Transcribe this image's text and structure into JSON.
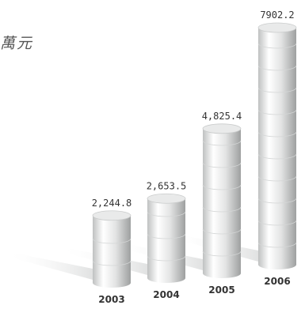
{
  "unit_label": "萬元",
  "chart_data": {
    "type": "bar",
    "title": "",
    "xlabel": "",
    "ylabel": "萬元",
    "categories": [
      "2003",
      "2004",
      "2005",
      "2006"
    ],
    "values": [
      2244.8,
      2653.5,
      4825.4,
      7902.2
    ],
    "value_labels": [
      "2,244.8",
      "2,653.5",
      "4,825.4",
      "7902.2"
    ],
    "ylim": [
      0,
      7902.2
    ],
    "grid": false,
    "legend": "none",
    "colors": {
      "bar_light": "#ffffff",
      "bar_dark": "#aeb0b0",
      "bar_top": "#e9eaea",
      "text": "#333333",
      "unit": "#555555"
    }
  }
}
